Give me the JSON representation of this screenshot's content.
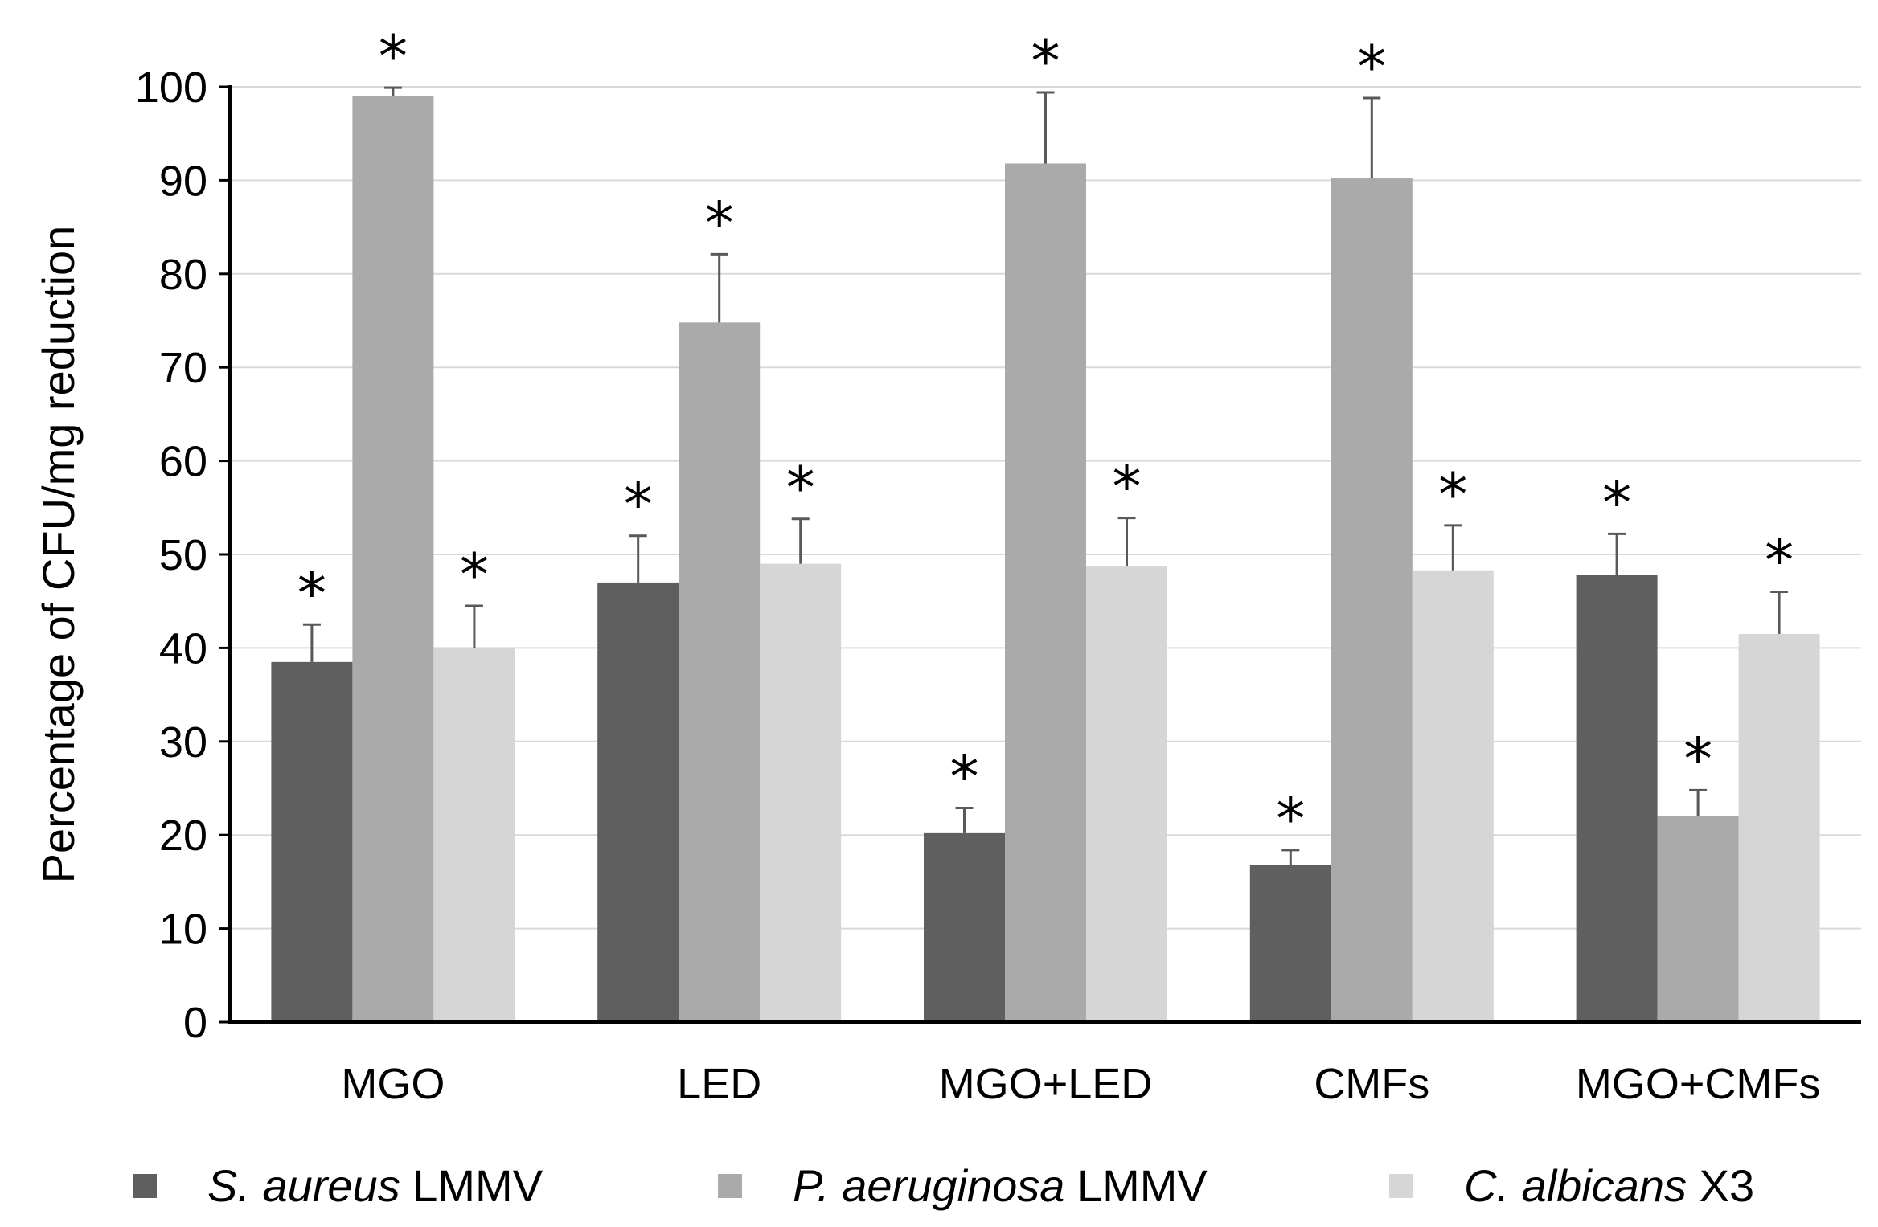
{
  "chart_data": {
    "type": "bar",
    "ylabel": "Percentage of CFU/mg reduction",
    "ylim": [
      0,
      100
    ],
    "yticks": [
      0,
      10,
      20,
      30,
      40,
      50,
      60,
      70,
      80,
      90,
      100
    ],
    "grid": true,
    "legend_position": "bottom",
    "categories": [
      "MGO",
      "LED",
      "MGO+LED",
      "CMFs",
      "MGO+CMFs"
    ],
    "series": [
      {
        "italic": "S. aureus",
        "suffix": " LMMV",
        "color": "#5f5f5f",
        "values": [
          38.5,
          47,
          20.2,
          16.8,
          47.8
        ],
        "errors": [
          4.0,
          5.0,
          2.7,
          1.6,
          4.4
        ],
        "marks": [
          "*",
          "*",
          "*",
          "*",
          "*"
        ]
      },
      {
        "italic": "P. aeruginosa",
        "suffix": " LMMV",
        "color": "#aaaaaa",
        "values": [
          99,
          74.8,
          91.8,
          90.2,
          22
        ],
        "errors": [
          0.9,
          7.3,
          7.6,
          8.6,
          2.8
        ],
        "marks": [
          "*",
          "*",
          "*",
          "*",
          "*"
        ]
      },
      {
        "italic": "C. albicans",
        "suffix": " X3",
        "color": "#d6d6d6",
        "values": [
          40,
          49,
          48.7,
          48.3,
          41.5
        ],
        "errors": [
          4.5,
          4.8,
          5.2,
          4.8,
          4.5
        ],
        "marks": [
          "*",
          "*",
          "*",
          "*",
          "*"
        ]
      }
    ]
  }
}
